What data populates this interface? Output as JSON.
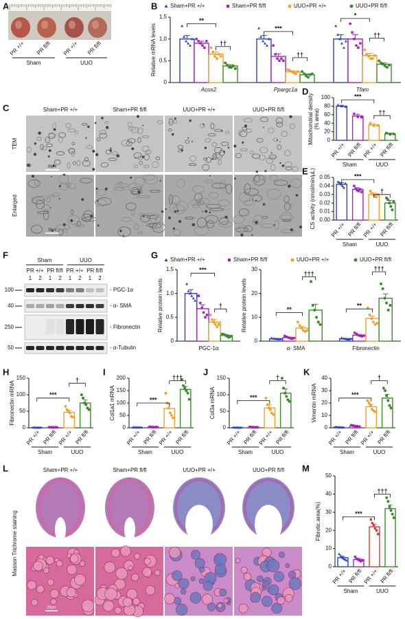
{
  "panel_letters": [
    "A",
    "B",
    "C",
    "D",
    "E",
    "F",
    "G",
    "H",
    "I",
    "J",
    "K",
    "L",
    "M"
  ],
  "photo": {
    "labels": [
      "PR +/+",
      "PR fl/fl",
      "PR +/+",
      "PR fl/fl"
    ],
    "groups": [
      "Sham",
      "UUO"
    ]
  },
  "tem": {
    "columns": [
      "Sham+PR +/+",
      "Sham+PR fl/fl",
      "UUO+PR +/+",
      "UUO+PR fl/fl"
    ],
    "rows": [
      "TEM",
      "Enlarged"
    ],
    "scale_bars": [
      "30μm",
      "10μm"
    ]
  },
  "blot": {
    "groups": [
      "Sham",
      "UUO"
    ],
    "genotypes": [
      "PR +/+",
      "PR fl/fl",
      "PR +/+",
      "PR fl/fl"
    ],
    "lanes": [
      "1",
      "2",
      "1",
      "2",
      "1",
      "2",
      "1",
      "2"
    ],
    "markers": [
      "100",
      "40",
      "250",
      "50"
    ],
    "proteins": [
      "- PGC-1α",
      "- α- SMA",
      "- Fibronectin",
      "- α-Tubulin"
    ]
  },
  "masson": {
    "columns": [
      "Sham+PR +/+",
      "Sham+PR fl/fl",
      "UUO+PR +/+",
      "UUO+PR fl/fl"
    ],
    "row_label": "Masson Trichrome staining",
    "scale_bar": "20μm"
  },
  "chart_data": [
    {
      "type": "grouped_bar",
      "ylabel": "Relative mRNA levels",
      "italic": true,
      "categories": [
        "Acox2",
        "Ppargc1a",
        "Tfam"
      ],
      "ylim": [
        0,
        1.5
      ],
      "yticks": [
        0,
        0.5,
        {
          "value": 1,
          "label": "1.0"
        },
        1.5
      ],
      "series": [
        {
          "name": "Sham+PR +/+",
          "color": "#2b3fc4",
          "values": [
            1.0,
            1.0,
            1.0
          ],
          "errors": [
            0.08,
            0.08,
            0.1
          ],
          "points": [
            [
              1.3,
              1.05,
              0.95,
              0.9,
              0.85,
              1.0
            ],
            [
              1.25,
              1.05,
              0.95,
              0.9,
              0.85,
              1.0
            ],
            [
              1.3,
              1.1,
              1.0,
              0.9,
              0.8,
              0.95
            ]
          ]
        },
        {
          "name": "Sham+PR fl/fl",
          "color": "#a020c0",
          "values": [
            0.9,
            0.6,
            1.0
          ],
          "errors": [
            0.05,
            0.06,
            0.1
          ],
          "points": [
            [
              1.0,
              0.95,
              0.9,
              0.85,
              0.8,
              0.95
            ],
            [
              0.85,
              0.65,
              0.55,
              0.5,
              0.55,
              0.5
            ],
            [
              1.35,
              1.15,
              1.0,
              0.85,
              0.8,
              0.9
            ]
          ]
        },
        {
          "name": "UUO+PR +/+",
          "color": "#f39c2a",
          "values": [
            0.65,
            0.25,
            0.62
          ],
          "errors": [
            0.06,
            0.02,
            0.05
          ],
          "points": [
            [
              0.8,
              0.7,
              0.6,
              0.55,
              0.65,
              0.6
            ],
            [
              0.3,
              0.28,
              0.25,
              0.22,
              0.2,
              0.25
            ],
            [
              0.75,
              0.65,
              0.6,
              0.55,
              0.55,
              0.62
            ]
          ]
        },
        {
          "name": "UUO+PR fl/fl",
          "color": "#3a8a2a",
          "values": [
            0.38,
            0.18,
            0.42
          ],
          "errors": [
            0.03,
            0.02,
            0.03
          ],
          "points": [
            [
              0.45,
              0.4,
              0.35,
              0.35,
              0.38,
              0.32
            ],
            [
              0.25,
              0.2,
              0.15,
              0.12,
              0.18,
              0.2
            ],
            [
              0.5,
              0.45,
              0.42,
              0.38,
              0.35,
              0.4
            ]
          ]
        }
      ],
      "annotations": [
        "**",
        "††",
        "***",
        "††",
        "*",
        "††"
      ]
    },
    {
      "type": "bar",
      "ylabel": [
        "Mitochondrial density",
        "(% area)"
      ],
      "categories": [
        "PR +/+",
        "PR fl/fl",
        "PR +/+",
        "PR fl/fl"
      ],
      "groups": [
        "Sham",
        "UUO"
      ],
      "colors": [
        "#2b3fc4",
        "#a020c0",
        "#f39c2a",
        "#3a8a2a"
      ],
      "ylim": [
        0,
        100
      ],
      "yticks": [
        0,
        20,
        40,
        60,
        80,
        100
      ],
      "values": [
        80,
        57,
        36,
        15
      ],
      "errors": [
        2,
        4,
        3,
        2
      ],
      "points": [
        [
          83,
          80,
          79
        ],
        [
          62,
          55,
          54
        ],
        [
          40,
          34,
          35
        ],
        [
          17,
          14,
          15
        ]
      ],
      "annotations": [
        "***",
        "††"
      ]
    },
    {
      "type": "bar",
      "ylabel": "CS activity (nmol/min/μL)",
      "categories": [
        "PR +/+",
        "PR fl/fl",
        "PR +/+",
        "PR fl/fl"
      ],
      "groups": [
        "Sham",
        "UUO"
      ],
      "colors": [
        "#2b3fc4",
        "#a020c0",
        "#f39c2a",
        "#3a8a2a"
      ],
      "ylim": [
        0,
        0.05
      ],
      "yticks": [
        {
          "value": 0,
          "label": "0.00"
        },
        {
          "value": 0.01,
          "label": "0.01"
        },
        {
          "value": 0.02,
          "label": "0.02"
        },
        {
          "value": 0.03,
          "label": "0.03"
        },
        {
          "value": 0.04,
          "label": "0.04"
        },
        {
          "value": 0.05,
          "label": "0.05"
        }
      ],
      "values": [
        0.042,
        0.036,
        0.03,
        0.02
      ],
      "errors": [
        0.002,
        0.002,
        0.002,
        0.003
      ],
      "points": [
        [
          0.045,
          0.044,
          0.042,
          0.04,
          0.038,
          0.043
        ],
        [
          0.04,
          0.037,
          0.035,
          0.034,
          0.036,
          0.033
        ],
        [
          0.034,
          0.031,
          0.03,
          0.028,
          0.027,
          0.03
        ],
        [
          0.026,
          0.024,
          0.02,
          0.016,
          0.012,
          0.022
        ]
      ],
      "annotations": [
        "***",
        "†"
      ]
    },
    {
      "type": "grouped_bar",
      "ylabel": "Relative protein levels",
      "categories": [
        "PGC-1α"
      ],
      "ylim": [
        0,
        1.5
      ],
      "yticks": [
        0,
        0.5,
        {
          "value": 1,
          "label": "1.0"
        },
        1.5
      ],
      "series": [
        {
          "name": "Sham+PR +/+",
          "color": "#2b3fc4",
          "values": [
            1.0
          ],
          "errors": [
            0.08
          ],
          "points": [
            [
              1.2,
              1.05,
              1.0,
              0.95,
              0.9,
              0.85
            ]
          ]
        },
        {
          "name": "Sham+PR fl/fl",
          "color": "#a020c0",
          "values": [
            0.68
          ],
          "errors": [
            0.08
          ],
          "points": [
            [
              0.95,
              0.8,
              0.7,
              0.6,
              0.5,
              0.55
            ]
          ]
        },
        {
          "name": "UUO+PR +/+",
          "color": "#f39c2a",
          "values": [
            0.4
          ],
          "errors": [
            0.06
          ],
          "points": [
            [
              0.55,
              0.45,
              0.4,
              0.35,
              0.3,
              0.35
            ]
          ]
        },
        {
          "name": "UUO+PR fl/fl",
          "color": "#3a8a2a",
          "values": [
            0.12
          ],
          "errors": [
            0.02
          ],
          "points": [
            [
              0.15,
              0.14,
              0.12,
              0.1,
              0.08,
              0.1
            ]
          ]
        }
      ],
      "annotations": [
        "***",
        "†"
      ]
    },
    {
      "type": "grouped_bar",
      "ylabel": "Relative protein levels",
      "categories": [
        "α- SMA",
        "Fibronectin"
      ],
      "ylim": [
        0,
        30
      ],
      "yticks": [
        0,
        10,
        20,
        30
      ],
      "series": [
        {
          "color": "#2b3fc4",
          "values": [
            1.0,
            1.0
          ],
          "errors": [
            0.1,
            0.1
          ],
          "points": [
            [
              1.3,
              1.1,
              1.0,
              0.9,
              0.8,
              0.9
            ],
            [
              1.4,
              1.1,
              1.0,
              0.8,
              0.7,
              1.0
            ]
          ]
        },
        {
          "color": "#a020c0",
          "values": [
            1.5,
            2.5
          ],
          "errors": [
            0.2,
            0.2
          ],
          "points": [
            [
              2.2,
              1.8,
              1.5,
              1.2,
              1.0,
              1.3
            ],
            [
              3.5,
              3.0,
              2.5,
              2.2,
              2.0,
              2.3
            ]
          ]
        },
        {
          "color": "#f39c2a",
          "values": [
            5.5,
            9.5
          ],
          "errors": [
            0.6,
            1.0
          ],
          "points": [
            [
              8.0,
              6.5,
              5.5,
              4.5,
              4.0,
              4.5
            ],
            [
              14,
              11,
              9.5,
              8,
              7,
              7.5
            ]
          ]
        },
        {
          "color": "#3a8a2a",
          "values": [
            13,
            18
          ],
          "errors": [
            2.5,
            1.8
          ],
          "points": [
            [
              25,
              15,
              13,
              10,
              8,
              7
            ],
            [
              24,
              22,
              18,
              16,
              13,
              15
            ]
          ]
        }
      ],
      "annotations": [
        "**",
        "†††",
        "**",
        "†††"
      ]
    },
    {
      "type": "bar",
      "ylabel": "Fibronectin mRNA",
      "categories": [
        "PR +/+",
        "PR fl/fl",
        "PR +/+",
        "PR fl/fl"
      ],
      "groups": [
        "Sham",
        "UUO"
      ],
      "colors": [
        "#2b3fc4",
        "#a020c0",
        "#f39c2a",
        "#3a8a2a"
      ],
      "ylim": [
        0,
        150
      ],
      "yticks": [
        0,
        50,
        100,
        150
      ],
      "values": [
        1,
        1.5,
        47,
        75
      ],
      "errors": [
        0.2,
        0.3,
        7,
        9
      ],
      "points": [
        [
          1.2,
          1,
          0.9,
          1,
          0.8,
          1.1
        ],
        [
          2,
          1.5,
          1.3,
          1.6,
          1.2,
          1.4
        ],
        [
          65,
          55,
          50,
          45,
          35,
          32
        ],
        [
          100,
          90,
          75,
          70,
          60,
          55
        ]
      ],
      "annotations": [
        "***",
        "†"
      ]
    },
    {
      "type": "bar",
      "ylabel": "Col1a1 mRNA",
      "categories": [
        "PR +/+",
        "PR fl/fl",
        "PR +/+",
        "PR fl/fl"
      ],
      "groups": [
        "Sham",
        "UUO"
      ],
      "colors": [
        "#2b3fc4",
        "#a020c0",
        "#f39c2a",
        "#3a8a2a"
      ],
      "ylim": [
        0,
        200
      ],
      "yticks": [
        0,
        50,
        100,
        150,
        200
      ],
      "values": [
        2,
        3,
        78,
        155
      ],
      "errors": [
        0.5,
        0.8,
        20,
        12
      ],
      "points": [
        [
          2.5,
          2,
          1.8,
          2.2,
          1.5,
          2
        ],
        [
          4,
          3.5,
          3,
          2.5,
          2.8,
          3.2
        ],
        [
          140,
          100,
          80,
          60,
          50,
          40
        ],
        [
          195,
          170,
          160,
          150,
          140,
          115
        ]
      ],
      "annotations": [
        "***",
        "†††"
      ]
    },
    {
      "type": "bar",
      "ylabel": "Col3a mRNA",
      "categories": [
        "PR +/+",
        "PR fl/fl",
        "PR +/+",
        "PR fl/fl"
      ],
      "groups": [
        "Sham",
        "UUO"
      ],
      "colors": [
        "#2b3fc4",
        "#a020c0",
        "#f39c2a",
        "#3a8a2a"
      ],
      "ylim": [
        0,
        150
      ],
      "yticks": [
        0,
        50,
        100,
        150
      ],
      "values": [
        1,
        2,
        60,
        105
      ],
      "errors": [
        0.2,
        0.4,
        10,
        13
      ],
      "points": [
        [
          1.2,
          1,
          0.9,
          1,
          0.8,
          1.1
        ],
        [
          2.5,
          2.2,
          2,
          1.8,
          1.6,
          2
        ],
        [
          90,
          70,
          60,
          55,
          45,
          40
        ],
        [
          150,
          120,
          105,
          95,
          85,
          80
        ]
      ],
      "annotations": [
        "***",
        "†"
      ]
    },
    {
      "type": "bar",
      "ylabel": "Vimentin mRNA",
      "categories": [
        "PR +/+",
        "PR fl/fl",
        "PR +/+",
        "PR fl/fl"
      ],
      "groups": [
        "Sham",
        "UUO"
      ],
      "colors": [
        "#2b3fc4",
        "#a020c0",
        "#f39c2a",
        "#3a8a2a"
      ],
      "ylim": [
        0,
        40
      ],
      "yticks": [
        0,
        10,
        20,
        30,
        40
      ],
      "values": [
        0.5,
        1.5,
        17,
        24
      ],
      "errors": [
        0.1,
        0.3,
        2,
        3
      ],
      "points": [
        [
          0.7,
          0.6,
          0.5,
          0.4,
          0.5,
          0.3
        ],
        [
          2.2,
          1.8,
          1.5,
          1.3,
          1.2,
          1.0
        ],
        [
          22,
          20,
          18,
          15,
          14,
          13
        ],
        [
          32,
          30,
          26,
          22,
          18,
          16
        ]
      ],
      "annotations": [
        "***",
        "†"
      ]
    },
    {
      "type": "bar",
      "ylabel": "Fibrotic area(%)",
      "categories": [
        "PR +/+",
        "PR fl/fl",
        "PR +/+",
        "PR fl/fl"
      ],
      "groups": [
        "Sham",
        "UUO"
      ],
      "colors": [
        "#2b3fc4",
        "#a020c0",
        "#e8342a",
        "#3a8a2a"
      ],
      "ylim": [
        0,
        50
      ],
      "yticks": [
        0,
        10,
        20,
        30,
        40,
        50
      ],
      "values": [
        5,
        4,
        22,
        32
      ],
      "errors": [
        0.8,
        0.6,
        1.5,
        2
      ],
      "points": [
        [
          7,
          6,
          5,
          4.5,
          4,
          3.5
        ],
        [
          5.5,
          4.5,
          4,
          3.5,
          3,
          3.5
        ],
        [
          26,
          24,
          23,
          21,
          20,
          18
        ],
        [
          38,
          36,
          33,
          31,
          29,
          27
        ]
      ],
      "annotations": [
        "***",
        "†††"
      ]
    }
  ]
}
